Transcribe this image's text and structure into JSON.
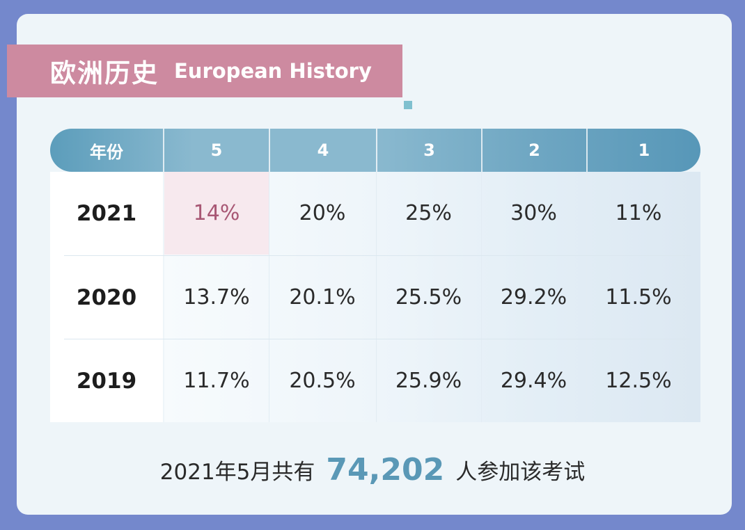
{
  "title": {
    "zh": "欧洲历史",
    "en": "European History"
  },
  "table": {
    "header_year_label": "年份",
    "score_columns": [
      "5",
      "4",
      "3",
      "2",
      "1"
    ],
    "rows": [
      {
        "year": "2021",
        "values": [
          "14%",
          "20%",
          "25%",
          "30%",
          "11%"
        ]
      },
      {
        "year": "2020",
        "values": [
          "13.7%",
          "20.1%",
          "25.5%",
          "29.2%",
          "11.5%"
        ]
      },
      {
        "year": "2019",
        "values": [
          "11.7%",
          "20.5%",
          "25.9%",
          "29.4%",
          "12.5%"
        ]
      }
    ]
  },
  "footer": {
    "prefix": "2021年5月共有",
    "count": "74,202",
    "suffix": "人参加该考试"
  },
  "colors": {
    "page_background": "#7488cc",
    "title_bar": "#cd8aa0",
    "header_blue": "#5c9dbb",
    "highlight_text": "#a85774",
    "count_blue": "#5a98b6"
  }
}
